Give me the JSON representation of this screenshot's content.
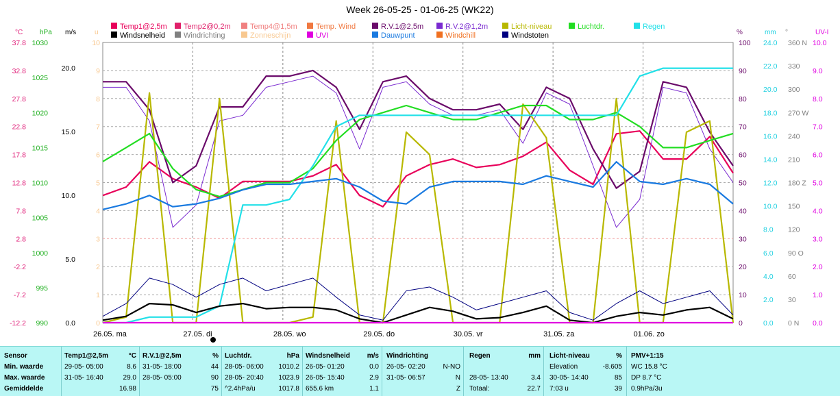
{
  "title": "Week 26-05-25 - 01-06-25 (WK22)",
  "legend": [
    {
      "label": "Temp1@2,5m",
      "color": "#e8005a"
    },
    {
      "label": "Temp2@0,2m",
      "color": "#e0206a"
    },
    {
      "label": "Temp4@1,5m",
      "color": "#f08080"
    },
    {
      "label": "Temp. Wind",
      "color": "#f07840"
    },
    {
      "label": "R.V.1@2,5m",
      "color": "#6a0a6a"
    },
    {
      "label": "R.V.2@1,2m",
      "color": "#7a2ad0"
    },
    {
      "label": "Licht-niveau",
      "color": "#b8b800"
    },
    {
      "label": "Luchtdr.",
      "color": "#22dd22"
    },
    {
      "label": "Regen",
      "color": "#22e0e8"
    },
    {
      "label": "Windsnelheid",
      "color": "#000000"
    },
    {
      "label": "Windrichting",
      "color": "#808080"
    },
    {
      "label": "Zonneschijn",
      "color": "#f8c890"
    },
    {
      "label": "UVI",
      "color": "#e000e0"
    },
    {
      "label": "Dauwpunt",
      "color": "#1a7ae0"
    },
    {
      "label": "Windchill",
      "color": "#f07020"
    },
    {
      "label": "Windstoten",
      "color": "#000080"
    }
  ],
  "axes": {
    "temp": {
      "unit": "°C",
      "ticks": [
        "37.8",
        "32.8",
        "27.8",
        "22.8",
        "17.8",
        "12.8",
        "7.8",
        "2.8",
        "-2.2",
        "-7.2",
        "-12.2"
      ],
      "color": "#e0207a"
    },
    "press": {
      "unit": "hPa",
      "ticks": [
        "1030",
        "1025",
        "1020",
        "1015",
        "1010",
        "1005",
        "1000",
        "995",
        "990"
      ],
      "color": "#20b020"
    },
    "wind": {
      "unit": "m/s",
      "ticks": [
        "20.0",
        "15.0",
        "10.0",
        "5.0",
        "0.0"
      ],
      "color": "#000000"
    },
    "u": {
      "unit": "u",
      "ticks": [
        "10",
        "9",
        "8",
        "7",
        "6",
        "5",
        "4",
        "3",
        "2",
        "1",
        "0"
      ],
      "color": "#f8c890"
    },
    "hum": {
      "unit": "%",
      "ticks": [
        "100",
        "90",
        "80",
        "70",
        "60",
        "50",
        "40",
        "30",
        "20",
        "10",
        "0"
      ],
      "color": "#6a0a6a"
    },
    "rain": {
      "unit": "mm",
      "ticks": [
        "24.0",
        "22.0",
        "20.0",
        "18.0",
        "16.0",
        "14.0",
        "12.0",
        "10.0",
        "8.0",
        "6.0",
        "4.0",
        "2.0",
        "0.0"
      ],
      "color": "#20d0e0"
    },
    "dir": {
      "unit": "°",
      "ticks": [
        "360 N",
        "330",
        "300",
        "270 W",
        "240",
        "210",
        "180 Z",
        "150",
        "120",
        "90 O",
        "60",
        "30",
        "0 N"
      ],
      "color": "#808080"
    },
    "uvi": {
      "unit": "UV-I",
      "ticks": [
        "10.0",
        "9.0",
        "8.0",
        "7.0",
        "6.0",
        "5.0",
        "4.0",
        "3.0",
        "2.0",
        "1.0",
        "0.0"
      ],
      "color": "#e000e0"
    }
  },
  "days": [
    "26.05. ma",
    "27.05. di",
    "28.05. wo",
    "29.05. do",
    "30.05. vr",
    "31.05. za",
    "01.06. zo"
  ],
  "chart_data": {
    "type": "line",
    "title": "Week 26-05-25 - 01-06-25 (WK22)",
    "x": [
      "26.05.",
      "",
      "",
      "",
      "27.05.",
      "",
      "",
      "",
      "28.05.",
      "",
      "",
      "",
      "29.05.",
      "",
      "",
      "",
      "30.05.",
      "",
      "",
      "",
      "31.05.",
      "",
      "",
      "",
      "01.06.",
      "",
      "",
      ""
    ],
    "ylim_temp": [
      -12.2,
      37.8
    ],
    "ylim_hum": [
      0,
      100
    ],
    "ylim_wind": [
      0,
      22
    ],
    "ylim_rain": [
      0,
      25
    ],
    "series": [
      {
        "name": "Temp1@2,5m",
        "axis": "temp",
        "color": "#e8005a",
        "values": [
          10.5,
          12,
          16.5,
          13.5,
          12,
          10,
          13,
          13,
          13,
          14,
          16,
          10.5,
          8.5,
          14,
          16,
          17,
          15.5,
          16,
          17.5,
          20,
          15,
          12.5,
          21.5,
          22,
          17,
          17,
          21,
          14.5
        ]
      },
      {
        "name": "R.V.1@2,5m",
        "axis": "hum",
        "color": "#6a0a6a",
        "values": [
          86,
          86,
          76,
          50,
          56,
          77,
          77,
          88,
          88,
          90,
          84,
          69,
          86,
          88,
          80,
          76,
          76,
          78,
          69,
          84,
          80,
          62,
          48,
          54,
          86,
          84,
          68,
          56
        ]
      },
      {
        "name": "R.V.2@1,2m",
        "axis": "hum",
        "color": "#7a2ad0",
        "values": [
          84,
          84,
          72,
          34,
          42,
          72,
          74,
          84,
          86,
          88,
          82,
          62,
          84,
          86,
          78,
          74,
          74,
          76,
          64,
          82,
          78,
          56,
          34,
          44,
          84,
          82,
          62,
          50
        ]
      },
      {
        "name": "Licht-niveau",
        "axis": "hum",
        "color": "#b8b800",
        "values": [
          0,
          2,
          82,
          0,
          0,
          80,
          0,
          0,
          0,
          2,
          72,
          0,
          0,
          68,
          60,
          0,
          0,
          0,
          78,
          66,
          0,
          0,
          80,
          0,
          0,
          68,
          72,
          0
        ]
      },
      {
        "name": "Luchtdr.",
        "axis": "press",
        "color": "#22dd22",
        "values": [
          1013,
          1015,
          1017,
          1012,
          1009,
          1008,
          1009,
          1010,
          1010,
          1012,
          1016,
          1019,
          1020,
          1021,
          1020,
          1019,
          1019,
          1020,
          1021,
          1021,
          1019,
          1019,
          1020,
          1018,
          1015,
          1015,
          1016,
          1017
        ]
      },
      {
        "name": "Regen",
        "axis": "rain",
        "color": "#22e0e8",
        "values": [
          0,
          0,
          0.5,
          0.5,
          0.5,
          1.5,
          10.5,
          10.5,
          11,
          14,
          17.5,
          18.5,
          18.5,
          18.5,
          18.5,
          18.5,
          18.5,
          18.5,
          18.5,
          18.5,
          18.5,
          18.5,
          18.5,
          22,
          22.7,
          22.7,
          22.7,
          22.7
        ]
      },
      {
        "name": "Windsnelheid",
        "axis": "wind",
        "color": "#000000",
        "values": [
          0.2,
          0.5,
          1.5,
          1.4,
          0.8,
          1.3,
          1.5,
          1.1,
          1.2,
          1.2,
          1.0,
          0.3,
          0,
          0.6,
          1.2,
          0.9,
          0.3,
          0.4,
          0.8,
          1.3,
          0.2,
          0,
          0.5,
          0.8,
          0.6,
          1.0,
          1.2,
          0.3
        ]
      },
      {
        "name": "Windstoten",
        "axis": "wind",
        "color": "#000080",
        "values": [
          0.5,
          1.5,
          3.5,
          3,
          2,
          3,
          3.5,
          2.5,
          3,
          3.5,
          2,
          0.6,
          0.2,
          2.5,
          2.8,
          2,
          1,
          1.5,
          2,
          2.5,
          0.8,
          0.2,
          1.5,
          2.5,
          1.5,
          2,
          2.5,
          0.6
        ]
      },
      {
        "name": "Dauwpunt",
        "axis": "temp",
        "color": "#1a7ae0",
        "values": [
          8,
          9,
          10.5,
          8.5,
          9,
          10,
          11.5,
          12.5,
          12.5,
          13,
          13.5,
          12,
          9.5,
          9,
          12,
          13,
          13,
          13,
          12.5,
          14,
          13,
          12,
          16.5,
          13,
          12.5,
          13.5,
          12.5,
          9
        ]
      },
      {
        "name": "UVI",
        "axis": "uvi",
        "color": "#e000e0",
        "values": [
          0,
          0,
          0,
          0,
          0,
          0,
          0,
          0,
          0,
          0,
          0,
          0,
          0,
          0,
          0,
          0,
          0,
          0,
          0,
          0,
          0,
          0,
          0,
          0,
          0,
          0,
          0,
          0
        ]
      }
    ]
  },
  "stats": {
    "sensor": {
      "h": "Sensor",
      "r1": "Min. waarde",
      "r2": "Max. waarde",
      "r3": "Gemiddelde"
    },
    "temp": {
      "h": "Temp1@2,5m",
      "u": "°C",
      "r1a": "29-05- 05:00",
      "r1b": "8.6",
      "r2a": "31-05- 16:40",
      "r2b": "29.0",
      "r3b": "16.98"
    },
    "rv": {
      "h": "R.V.1@2,5m",
      "u": "%",
      "r1a": "31-05- 18:00",
      "r1b": "44",
      "r2a": "28-05- 05:00",
      "r2b": "90",
      "r3b": "75"
    },
    "druk": {
      "h": "Luchtdr.",
      "u": "hPa",
      "r1a": "28-05- 06:00",
      "r1b": "1010.2",
      "r2a": "28-05- 20:40",
      "r2b": "1023.9",
      "r3a": "^2.4hPa/u",
      "r3b": "1017.8"
    },
    "wind": {
      "h": "Windsnelheid",
      "u": "m/s",
      "r1a": "26-05- 01:20",
      "r1b": "0.0",
      "r2a": "26-05- 15:40",
      "r2b": "2.9",
      "r3a": "655.6 km",
      "r3b": "1.1"
    },
    "richting": {
      "h": "Windrichting",
      "r1a": "26-05- 02:20",
      "r1b": "N-NO",
      "r2a": "31-05- 06:57",
      "r2b": "N",
      "r3b": "Z"
    },
    "regen": {
      "h": "Regen",
      "u": "mm",
      "r2a": "28-05- 13:40",
      "r2b": "3.4",
      "r3a": "Totaal:",
      "r3b": "22.7"
    },
    "licht": {
      "h": "Licht-niveau",
      "u": "%",
      "r1a": "Elevation",
      "r1b": "-8.605",
      "r2a": "30-05- 14:40",
      "r2b": "85",
      "r3a": "7:03 u",
      "r3b": "39"
    },
    "pmv": {
      "h": "PMV+1:15",
      "r1": "WC 15.8 °C",
      "r2": "DP 8.7 °C",
      "r3": "0.9hPa/3u"
    }
  }
}
